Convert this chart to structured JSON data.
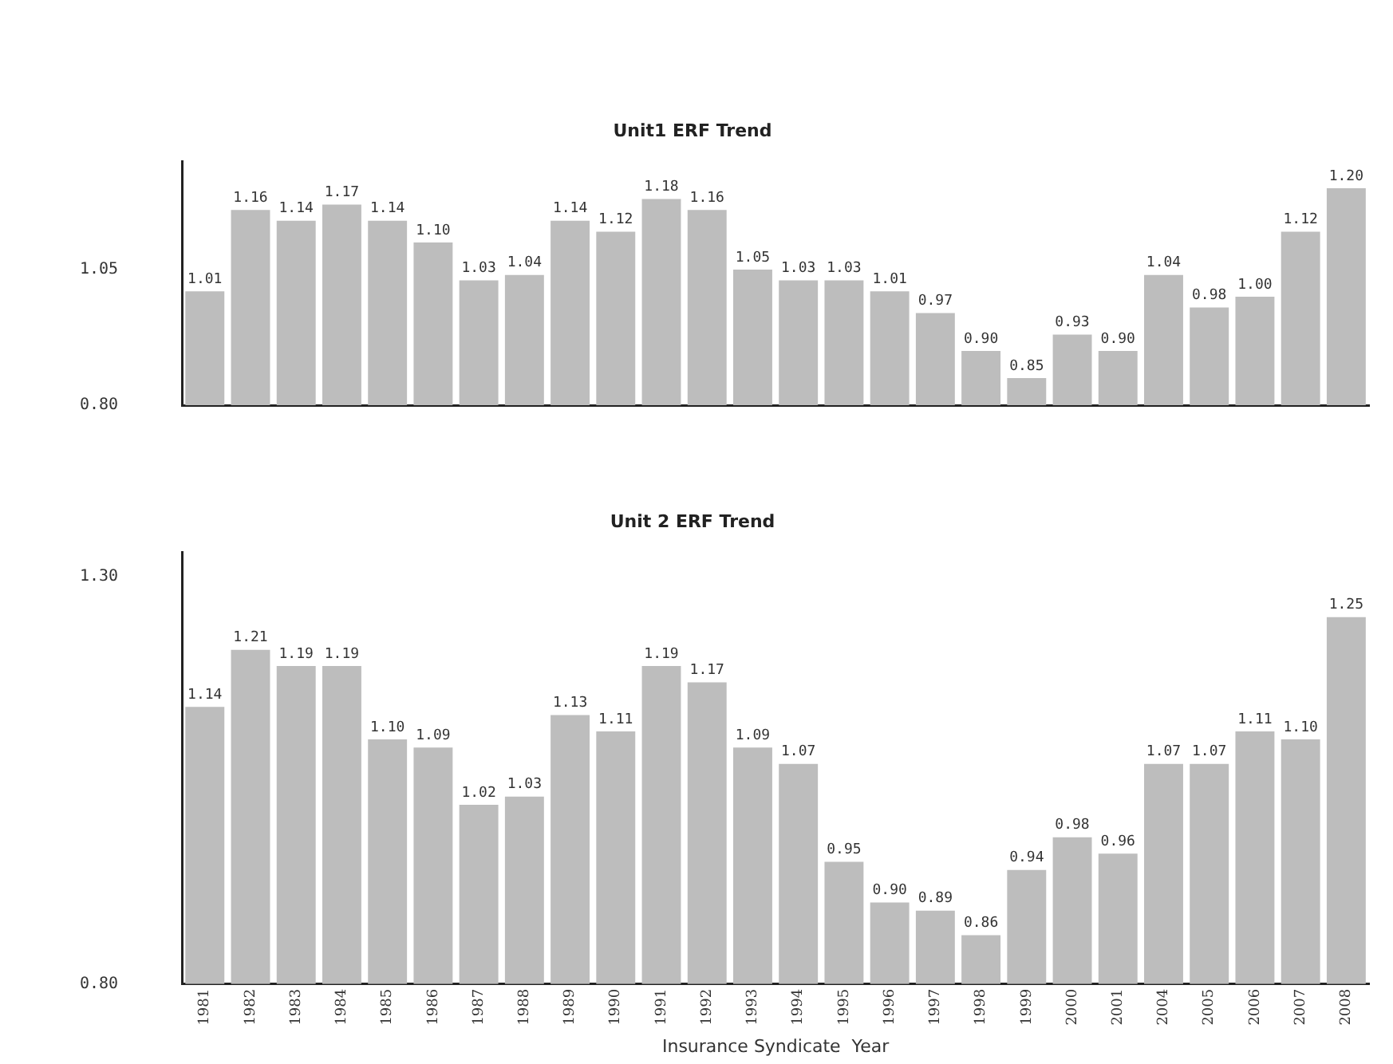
{
  "chart_data": [
    {
      "type": "bar",
      "title": "Unit1 ERF Trend",
      "categories": [
        "1981",
        "1982",
        "1983",
        "1984",
        "1985",
        "1986",
        "1987",
        "1988",
        "1989",
        "1990",
        "1991",
        "1992",
        "1993",
        "1994",
        "1995",
        "1996",
        "1997",
        "1998",
        "1999",
        "2000",
        "2001",
        "2004",
        "2005",
        "2006",
        "2007",
        "2008"
      ],
      "values": [
        1.01,
        1.16,
        1.14,
        1.17,
        1.14,
        1.1,
        1.03,
        1.04,
        1.14,
        1.12,
        1.18,
        1.16,
        1.05,
        1.03,
        1.03,
        1.01,
        0.97,
        0.9,
        0.85,
        0.93,
        0.9,
        1.04,
        0.98,
        1.0,
        1.12,
        1.2
      ],
      "value_labels": [
        "1.01",
        "1.16",
        "1.14",
        "1.17",
        "1.14",
        "1.10",
        "1.03",
        "1.04",
        "1.14",
        "1.12",
        "1.18",
        "1.16",
        "1.05",
        "1.03",
        "1.03",
        "1.01",
        "0.97",
        "0.90",
        "0.85",
        "0.93",
        "0.90",
        "1.04",
        "0.98",
        "1.00",
        "1.12",
        "1.20"
      ],
      "color": "#bdbdbd",
      "ylim": [
        0.8,
        1.25
      ],
      "yticks": [
        {
          "value": 0.8,
          "label": "0.80"
        },
        {
          "value": 1.05,
          "label": "1.05"
        }
      ],
      "grid": false,
      "legend": false,
      "tick_labels": "y"
    },
    {
      "type": "bar",
      "title": "Unit 2 ERF Trend",
      "xlabel": "Insurance Syndicate  Year",
      "categories": [
        "1981",
        "1982",
        "1983",
        "1984",
        "1985",
        "1986",
        "1987",
        "1988",
        "1989",
        "1990",
        "1991",
        "1992",
        "1993",
        "1994",
        "1995",
        "1996",
        "1997",
        "1998",
        "1999",
        "2000",
        "2001",
        "2004",
        "2005",
        "2006",
        "2007",
        "2008"
      ],
      "values": [
        1.14,
        1.21,
        1.19,
        1.19,
        1.1,
        1.09,
        1.02,
        1.03,
        1.13,
        1.11,
        1.19,
        1.17,
        1.09,
        1.07,
        0.95,
        0.9,
        0.89,
        0.86,
        0.94,
        0.98,
        0.96,
        1.07,
        1.07,
        1.11,
        1.1,
        1.25
      ],
      "value_labels": [
        "1.14",
        "1.21",
        "1.19",
        "1.19",
        "1.10",
        "1.09",
        "1.02",
        "1.03",
        "1.13",
        "1.11",
        "1.19",
        "1.17",
        "1.09",
        "1.07",
        "0.95",
        "0.90",
        "0.89",
        "0.86",
        "0.94",
        "0.98",
        "0.96",
        "1.07",
        "1.07",
        "1.11",
        "1.10",
        "1.25"
      ],
      "color": "#bdbdbd",
      "ylim": [
        0.8,
        1.33
      ],
      "yticks": [
        {
          "value": 0.8,
          "label": "0.80"
        },
        {
          "value": 1.3,
          "label": "1.30"
        }
      ],
      "grid": false,
      "legend": false
    }
  ]
}
